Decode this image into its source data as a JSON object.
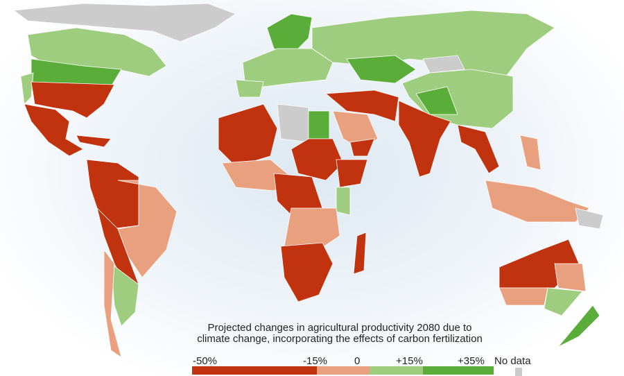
{
  "title": "Projected changes in agricultural productivity 2080 due to climate change, incorporating the effects of carbon fertilization",
  "legend": {
    "labels": [
      "-50%",
      "-15%",
      "0",
      "+15%",
      "+35%",
      "No data"
    ],
    "colors": {
      "strong_loss": "#c1330f",
      "loss": "#e9a07f",
      "gain": "#9fcd7f",
      "strong_gain": "#5bad3a",
      "no_data": "#cccccc"
    }
  }
}
